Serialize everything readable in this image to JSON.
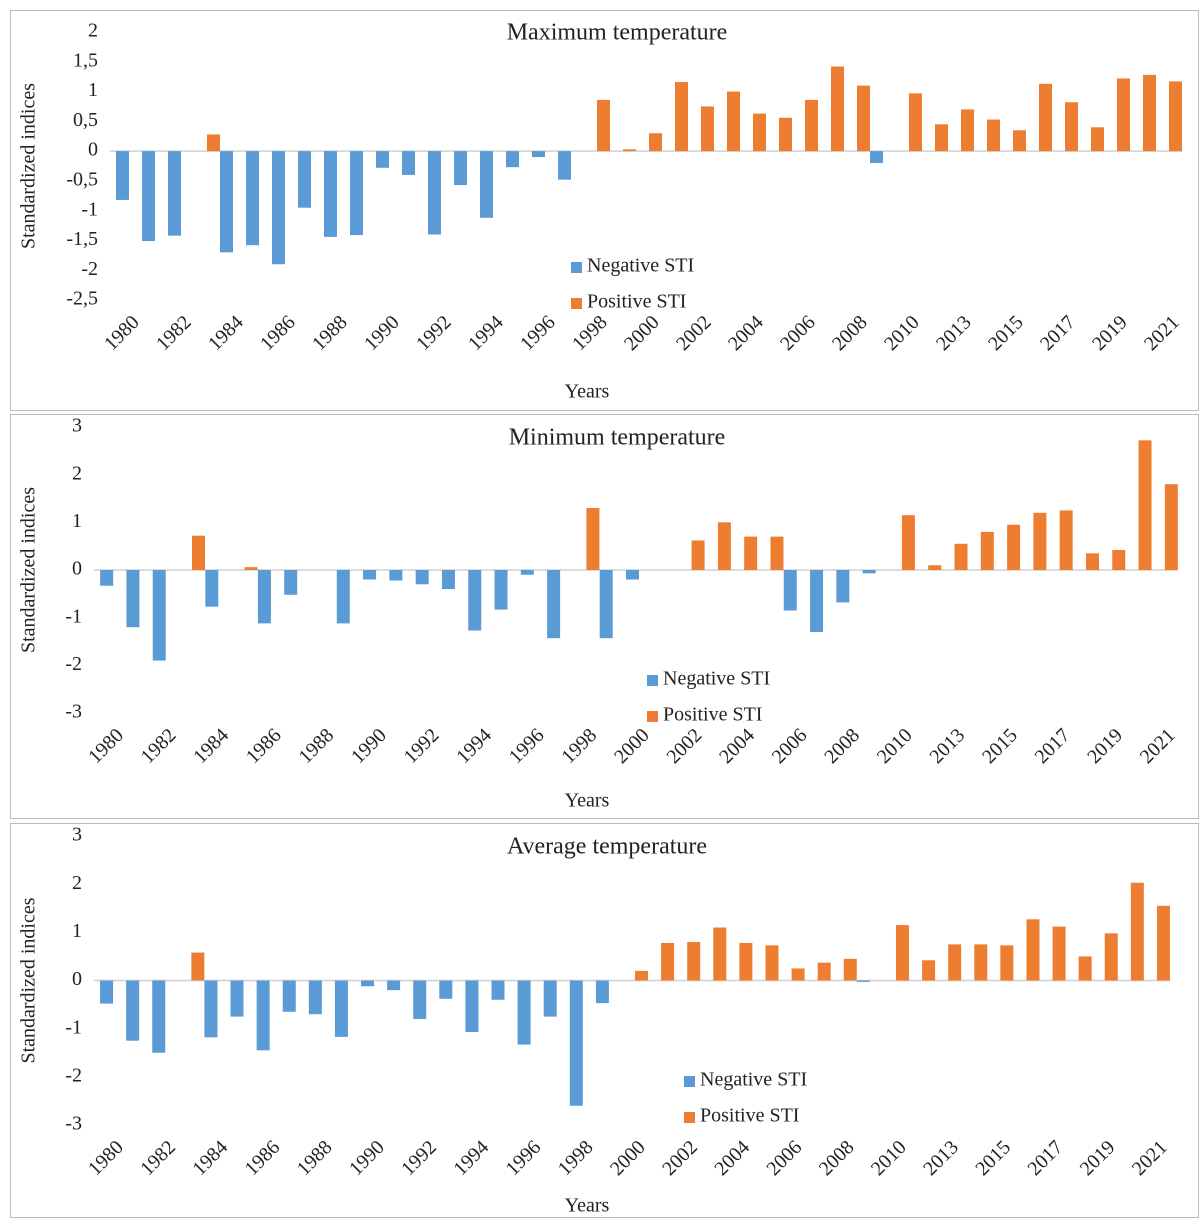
{
  "chart_data": [
    {
      "type": "bar",
      "title": "Maximum temperature",
      "x_label": "Years",
      "y_label": "Standardized indices",
      "categories": [
        "1980",
        null,
        "1982",
        null,
        "1984",
        null,
        "1986",
        null,
        "1988",
        null,
        "1990",
        null,
        "1992",
        null,
        "1994",
        null,
        "1996",
        null,
        "1998",
        null,
        "2000",
        null,
        "2002",
        null,
        "2004",
        null,
        "2006",
        null,
        "2008",
        null,
        "2010",
        null,
        "2013",
        null,
        "2015",
        null,
        "2017",
        null,
        "2019",
        null,
        "2021"
      ],
      "series": [
        {
          "name": "Negative STI",
          "color": "#5b9bd5",
          "values": [
            -0.82,
            -1.51,
            -1.42,
            null,
            -1.7,
            -1.58,
            -1.9,
            -0.95,
            -1.44,
            -1.41,
            -0.28,
            -0.4,
            -1.4,
            -0.57,
            -1.12,
            -0.27,
            -0.1,
            -0.48,
            null,
            null,
            null,
            null,
            null,
            null,
            null,
            null,
            null,
            null,
            null,
            -0.2,
            null,
            null,
            null,
            null,
            null,
            null,
            null,
            null,
            null,
            null,
            null
          ]
        },
        {
          "name": "Positive STI",
          "color": "#ed7d31",
          "values": [
            null,
            null,
            null,
            0.28,
            null,
            null,
            null,
            null,
            null,
            null,
            null,
            null,
            null,
            null,
            null,
            null,
            null,
            null,
            0.86,
            0.03,
            0.3,
            1.16,
            0.75,
            1.0,
            0.63,
            0.56,
            0.86,
            1.42,
            1.1,
            null,
            0.97,
            0.45,
            0.7,
            0.53,
            0.35,
            1.13,
            0.82,
            0.4,
            1.22,
            1.28,
            1.17
          ]
        }
      ],
      "ylim": [
        -2.5,
        2
      ],
      "yticks": [
        2,
        {
          "value": 1.5,
          "label": "1,5"
        },
        1,
        {
          "value": 0.5,
          "label": "0,5"
        },
        0,
        {
          "value": -0.5,
          "label": "-0,5"
        },
        -1,
        {
          "value": -1.5,
          "label": "-1,5"
        },
        -2,
        {
          "value": -2.5,
          "label": "-2,5"
        }
      ],
      "legend": "bottom"
    },
    {
      "type": "bar",
      "title": "Minimum temperature",
      "x_label": "Years",
      "y_label": "Standardized indices",
      "categories": [
        "1980",
        null,
        "1982",
        null,
        "1984",
        null,
        "1986",
        null,
        "1988",
        null,
        "1990",
        null,
        "1992",
        null,
        "1994",
        null,
        "1996",
        null,
        "1998",
        null,
        "2000",
        null,
        "2002",
        null,
        "2004",
        null,
        "2006",
        null,
        "2008",
        null,
        "2010",
        null,
        "2013",
        null,
        "2015",
        null,
        "2017",
        null,
        "2019",
        null,
        "2021"
      ],
      "series": [
        {
          "name": "Negative STI",
          "color": "#5b9bd5",
          "values": [
            -0.33,
            -1.2,
            -1.9,
            null,
            -0.77,
            null,
            -1.12,
            -0.52,
            null,
            -1.12,
            -0.2,
            -0.22,
            -0.3,
            -0.4,
            -1.27,
            -0.83,
            -0.1,
            -1.43,
            null,
            -1.43,
            -0.2,
            null,
            null,
            null,
            null,
            null,
            -0.85,
            -1.3,
            -0.68,
            -0.07,
            null,
            null,
            null,
            null,
            null,
            null,
            null,
            null,
            null,
            null,
            null
          ]
        },
        {
          "name": "Positive STI",
          "color": "#ed7d31",
          "values": [
            null,
            null,
            null,
            0.72,
            null,
            0.06,
            null,
            null,
            null,
            null,
            null,
            null,
            null,
            null,
            null,
            null,
            null,
            null,
            1.3,
            null,
            null,
            null,
            0.62,
            1.0,
            0.7,
            0.7,
            null,
            null,
            null,
            null,
            1.15,
            0.1,
            0.55,
            0.8,
            0.95,
            1.2,
            1.25,
            0.35,
            0.42,
            2.72,
            1.8
          ]
        }
      ],
      "ylim": [
        -3,
        3
      ],
      "yticks": [
        3,
        2,
        1,
        0,
        -1,
        -2,
        -3
      ],
      "legend": "bottom"
    },
    {
      "type": "bar",
      "title": "Average temperature",
      "x_label": "Years",
      "y_label": "Standardized indices",
      "categories": [
        "1980",
        null,
        "1982",
        null,
        "1984",
        null,
        "1986",
        null,
        "1988",
        null,
        "1990",
        null,
        "1992",
        null,
        "1994",
        null,
        "1996",
        null,
        "1998",
        null,
        "2000",
        null,
        "2002",
        null,
        "2004",
        null,
        "2006",
        null,
        "2008",
        null,
        "2010",
        null,
        "2013",
        null,
        "2015",
        null,
        "2017",
        null,
        "2019",
        null,
        "2021"
      ],
      "series": [
        {
          "name": "Negative STI",
          "color": "#5b9bd5",
          "values": [
            -0.48,
            -1.25,
            -1.5,
            null,
            -1.18,
            -0.75,
            -1.45,
            -0.65,
            -0.7,
            -1.17,
            -0.12,
            -0.2,
            -0.8,
            -0.38,
            -1.07,
            -0.4,
            -1.33,
            -0.75,
            -2.6,
            -0.47,
            null,
            null,
            null,
            null,
            null,
            null,
            null,
            null,
            null,
            -0.03,
            null,
            null,
            null,
            null,
            null,
            null,
            null,
            null,
            null,
            null,
            null
          ]
        },
        {
          "name": "Positive STI",
          "color": "#ed7d31",
          "values": [
            null,
            null,
            null,
            0.58,
            null,
            null,
            null,
            null,
            null,
            null,
            null,
            null,
            null,
            null,
            null,
            null,
            null,
            null,
            null,
            null,
            0.2,
            0.78,
            0.8,
            1.1,
            0.78,
            0.73,
            0.25,
            0.37,
            0.45,
            null,
            1.15,
            0.42,
            0.75,
            0.75,
            0.73,
            1.27,
            1.12,
            0.5,
            0.98,
            2.03,
            1.55
          ]
        }
      ],
      "ylim": [
        -3,
        3
      ],
      "yticks": [
        3,
        2,
        1,
        0,
        -1,
        -2,
        -3
      ],
      "legend": "bottom"
    }
  ]
}
